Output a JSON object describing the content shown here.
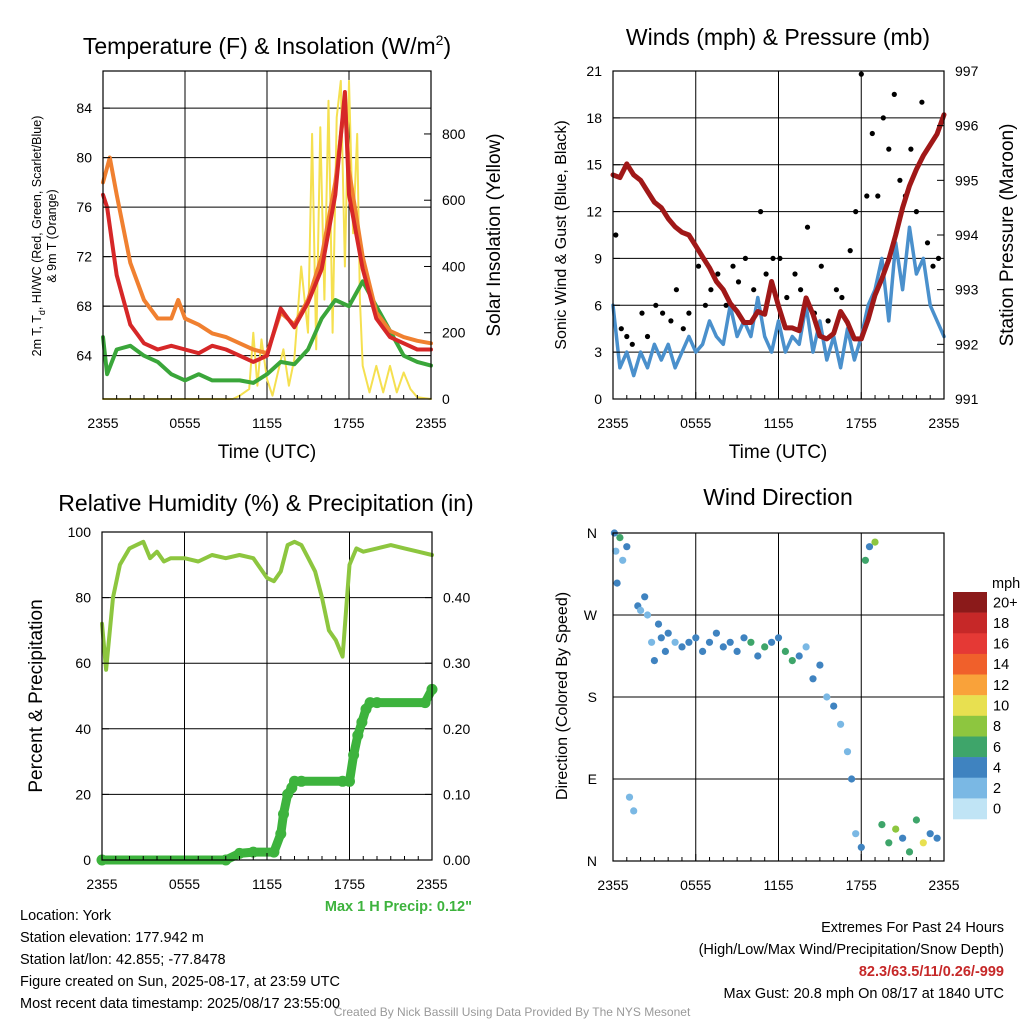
{
  "chart_data": [
    {
      "type": "line",
      "title": "Temperature (F) & Insolation (W/m²)",
      "title_main": "Temperature (F) & Insolation (W/m",
      "title_sup": "2",
      "title_close": ")",
      "xlabel": "Time (UTC)",
      "ylabel_left_line1": "2m T, T",
      "ylabel_left_sub": "d",
      "ylabel_left_rest": ", HI/WC (Red, Green, Scarlet/Blue)",
      "ylabel_left_line2": "& 9m T (Orange)",
      "ylabel_right": "Solar Insolation (Yellow)",
      "x_ticks": [
        "2355",
        "0555",
        "1155",
        "1755",
        "2355"
      ],
      "y_left_ticks": [
        64,
        68,
        72,
        76,
        80,
        84
      ],
      "y_left_lim": [
        60.5,
        87
      ],
      "y_right_ticks": [
        0,
        200,
        400,
        600,
        800
      ],
      "y_right_lim": [
        0,
        990
      ],
      "colors": {
        "temp": "#d62728",
        "dewpoint": "#3aa63a",
        "nine_m": "#f08030",
        "solar": "#f5e050"
      },
      "series": [
        {
          "key": "nine_m",
          "x": [
            0,
            0.5,
            1,
            2,
            3,
            4,
            5,
            5.5,
            6,
            7,
            8,
            9,
            10,
            11,
            12,
            13,
            14,
            15,
            16,
            17,
            17.7,
            18,
            19,
            20,
            21,
            22,
            23,
            24
          ],
          "values": [
            78,
            80,
            77,
            71.5,
            68.5,
            67,
            67,
            68.5,
            67,
            66.5,
            65.8,
            65.5,
            65,
            64.5,
            64.2,
            67.5,
            66.5,
            68.5,
            72,
            78,
            84.5,
            79,
            72,
            67.5,
            66,
            65.5,
            65.2,
            65
          ]
        },
        {
          "key": "temp",
          "x": [
            0,
            0.3,
            1,
            2,
            3,
            4,
            5,
            6,
            7,
            8,
            9,
            10,
            11,
            12,
            13,
            14,
            15,
            16,
            17,
            17.7,
            18,
            19,
            20,
            21,
            22,
            23,
            24
          ],
          "values": [
            77,
            76,
            70.5,
            66.5,
            65,
            64.5,
            64.8,
            64.5,
            64.2,
            64.8,
            64.5,
            64,
            63.5,
            64,
            67.8,
            66.3,
            68.3,
            71,
            77,
            85.3,
            77,
            71,
            67,
            65.5,
            65,
            64.5,
            64.5
          ]
        },
        {
          "key": "dewpoint",
          "x": [
            0,
            0.3,
            1,
            2,
            3,
            4,
            5,
            6,
            7,
            8,
            9,
            10,
            11,
            12,
            13,
            14,
            15,
            16,
            17,
            18,
            19,
            20,
            21,
            22,
            23,
            24
          ],
          "values": [
            65.5,
            62.5,
            64.5,
            64.8,
            64,
            63.5,
            62.5,
            62,
            62.5,
            62,
            62,
            62,
            61.8,
            62.5,
            63.5,
            63.3,
            64.5,
            67,
            68.5,
            68,
            70,
            68,
            66,
            64,
            63.5,
            63.2
          ]
        },
        {
          "key": "solar",
          "x": [
            0,
            9.5,
            10,
            10.7,
            11,
            11.3,
            11.6,
            12,
            12.4,
            12.8,
            13.2,
            13.6,
            14,
            14.5,
            15,
            15.3,
            15.6,
            15.9,
            16.2,
            16.5,
            16.8,
            17.1,
            17.4,
            17.7,
            18,
            18.3,
            18.6,
            18.8,
            19,
            19.5,
            20,
            20.5,
            21,
            21.5,
            22,
            22.5,
            23,
            24
          ],
          "values": [
            0,
            0,
            10,
            30,
            200,
            40,
            180,
            60,
            10,
            80,
            150,
            40,
            120,
            400,
            200,
            800,
            150,
            820,
            300,
            900,
            200,
            850,
            960,
            400,
            960,
            500,
            800,
            300,
            100,
            20,
            100,
            20,
            100,
            20,
            80,
            30,
            5,
            0
          ]
        }
      ]
    },
    {
      "type": "line",
      "title": "Winds (mph) & Pressure (mb)",
      "xlabel": "Time (UTC)",
      "ylabel_left": "Sonic Wind & Gust (Blue, Black)",
      "ylabel_right": "Station Pressure (Maroon)",
      "x_ticks": [
        "2355",
        "0555",
        "1155",
        "1755",
        "2355"
      ],
      "y_left_ticks": [
        0,
        3,
        6,
        9,
        12,
        15,
        18,
        21
      ],
      "y_left_lim": [
        0,
        21
      ],
      "y_right_ticks": [
        991,
        992,
        993,
        994,
        995,
        996,
        997
      ],
      "y_right_lim": [
        991,
        997
      ],
      "colors": {
        "wind": "#4a90cc",
        "gust": "#000000",
        "pressure": "#a01818"
      },
      "series": [
        {
          "key": "wind",
          "x": [
            0,
            0.5,
            1,
            1.5,
            2,
            2.5,
            3,
            3.5,
            4,
            4.5,
            5,
            5.5,
            6,
            6.5,
            7,
            7.5,
            8,
            8.5,
            9,
            9.5,
            10,
            10.5,
            11,
            11.5,
            12,
            12.5,
            13,
            13.5,
            14,
            14.5,
            15,
            15.5,
            16,
            16.5,
            17,
            17.5,
            18,
            18.5,
            19,
            19.5,
            20,
            20.5,
            21,
            21.5,
            22,
            22.5,
            23,
            23.5,
            24
          ],
          "values": [
            6,
            2,
            3,
            1.5,
            3,
            2,
            3.5,
            2.5,
            3.5,
            2,
            3,
            4,
            3,
            3.5,
            5,
            4,
            3.5,
            6,
            4,
            5,
            4,
            6.5,
            4,
            3,
            5,
            3,
            4,
            3.5,
            6,
            3,
            5,
            2.5,
            4,
            2,
            4.5,
            2.5,
            4,
            6,
            7,
            9,
            5,
            10,
            7,
            11,
            8,
            9,
            6,
            5,
            4
          ]
        },
        {
          "key": "gust",
          "x": [
            0.2,
            0.6,
            1,
            1.4,
            2.1,
            2.5,
            3.1,
            3.6,
            4.2,
            4.6,
            5.1,
            5.5,
            6.2,
            6.7,
            7.1,
            7.6,
            8.2,
            8.7,
            9.1,
            9.6,
            10.2,
            10.7,
            11.1,
            11.6,
            12.1,
            12.6,
            13.2,
            13.6,
            14.1,
            14.6,
            15.1,
            15.6,
            16.2,
            16.6,
            17.2,
            17.6,
            18,
            18.4,
            18.8,
            19.2,
            19.6,
            20,
            20.4,
            20.8,
            21.2,
            21.6,
            22,
            22.4,
            22.8,
            23.2,
            23.6
          ],
          "values": [
            10.5,
            4.5,
            4,
            3.5,
            5.5,
            4,
            6,
            5.5,
            5,
            7,
            4.5,
            5.5,
            8.5,
            6,
            7,
            8,
            6,
            8.5,
            7.5,
            9,
            7,
            12,
            8,
            9,
            9,
            6.5,
            8,
            7,
            11,
            5.5,
            8.5,
            5,
            7,
            6.5,
            9.5,
            12,
            20.8,
            13,
            17,
            13,
            18,
            16,
            19.5,
            14,
            13,
            16,
            12,
            19,
            10,
            8.5,
            9
          ]
        },
        {
          "key": "pressure",
          "x": [
            0,
            0.5,
            1,
            1.5,
            2,
            2.5,
            3,
            3.5,
            4,
            4.5,
            5,
            5.5,
            6,
            6.5,
            7,
            7.5,
            8,
            8.5,
            9,
            9.5,
            10,
            10.5,
            11,
            11.5,
            12,
            12.5,
            13,
            13.5,
            14,
            14.5,
            15,
            15.5,
            16,
            16.5,
            17,
            17.5,
            18,
            18.5,
            19,
            19.5,
            20,
            20.5,
            21,
            21.5,
            22,
            22.5,
            23,
            23.5,
            24
          ],
          "values": [
            995.1,
            995.05,
            995.3,
            995.1,
            995.0,
            994.8,
            994.6,
            994.5,
            994.3,
            994.15,
            994.05,
            994.0,
            993.8,
            993.6,
            993.4,
            993.15,
            993.0,
            992.75,
            992.6,
            992.4,
            992.4,
            992.6,
            992.55,
            993.15,
            992.7,
            992.3,
            992.3,
            992.25,
            992.85,
            992.55,
            992.15,
            992.1,
            992.2,
            992.6,
            992.4,
            992.1,
            992.1,
            992.45,
            992.9,
            993.2,
            993.55,
            994.0,
            994.5,
            994.9,
            995.2,
            995.45,
            995.65,
            995.85,
            996.2
          ]
        }
      ]
    },
    {
      "type": "line",
      "title": "Relative Humidity (%) & Precipitation (in)",
      "xlabel": "",
      "ylabel_left": "Percent & Precipitation",
      "x_ticks": [
        "2355",
        "0555",
        "1155",
        "1755",
        "2355"
      ],
      "y_left_ticks": [
        0,
        20,
        40,
        60,
        80,
        100
      ],
      "y_left_lim": [
        0,
        100
      ],
      "y_right_ticks": [
        "0.00",
        "0.10",
        "0.20",
        "0.30",
        "0.40"
      ],
      "y_right_lim": [
        0,
        0.5
      ],
      "annotation": "Max 1 H Precip: 0.12\"",
      "colors": {
        "rh": "#8dc63f",
        "precip": "#3db33d"
      },
      "series": [
        {
          "key": "rh",
          "x": [
            0,
            0.3,
            0.8,
            1.3,
            2,
            2.5,
            3,
            3.5,
            4,
            4.5,
            5,
            6,
            7,
            8,
            9,
            10,
            11,
            12,
            12.5,
            13,
            13.5,
            14,
            14.5,
            15,
            15.5,
            16,
            16.5,
            17,
            17.5,
            18,
            18.5,
            19,
            20,
            21,
            22,
            23,
            24
          ],
          "values": [
            72,
            58,
            80,
            90,
            95,
            96,
            97,
            92,
            94,
            91,
            92,
            92,
            91,
            93,
            92,
            93,
            92,
            86,
            85,
            88,
            96,
            97,
            96,
            92,
            88,
            80,
            70,
            67,
            62,
            90,
            95,
            94,
            95,
            96,
            95,
            94,
            93
          ]
        },
        {
          "key": "precip",
          "x": [
            0,
            9,
            10,
            11,
            12.5,
            13,
            13.2,
            13.5,
            13.8,
            14,
            14.5,
            17.5,
            18,
            18.3,
            18.6,
            18.9,
            19.2,
            19.5,
            20,
            23.5,
            24
          ],
          "values": [
            0,
            0,
            0.01,
            0.012,
            0.012,
            0.04,
            0.07,
            0.1,
            0.11,
            0.12,
            0.12,
            0.12,
            0.12,
            0.16,
            0.19,
            0.21,
            0.23,
            0.24,
            0.24,
            0.24,
            0.26
          ]
        }
      ]
    },
    {
      "type": "scatter",
      "title": "Wind Direction",
      "xlabel": "",
      "ylabel_left": "Direction (Colored By Speed)",
      "x_ticks": [
        "2355",
        "0555",
        "1155",
        "1755",
        "2355"
      ],
      "y_ticks": [
        "N",
        "E",
        "S",
        "W",
        "N"
      ],
      "y_lim": [
        0,
        360
      ],
      "legend_title": "mph",
      "legend_labels": [
        "20+",
        "18",
        "16",
        "14",
        "12",
        "10",
        "8",
        "6",
        "4",
        "2",
        "0"
      ],
      "legend_colors": [
        "#8b1a1a",
        "#c62828",
        "#e53935",
        "#f0602b",
        "#f9a23a",
        "#e8e050",
        "#8dc63f",
        "#3ea56a",
        "#3f83c0",
        "#7ab8e4",
        "#c0e4f5"
      ],
      "series": [
        {
          "key": "direction",
          "x": [
            0.1,
            0.2,
            0.3,
            0.5,
            0.7,
            1,
            1.2,
            1.5,
            1.8,
            2,
            2.3,
            2.5,
            2.8,
            3,
            3.3,
            3.5,
            3.8,
            4,
            4.5,
            5,
            5.5,
            6,
            6.5,
            7,
            7.5,
            8,
            8.5,
            9,
            9.5,
            10,
            10.5,
            11,
            11.5,
            12,
            12.5,
            13,
            13.5,
            14,
            14.5,
            15,
            15.5,
            16,
            16.5,
            17,
            17.3,
            17.6,
            18,
            18.3,
            18.6,
            19,
            19.5,
            20,
            20.5,
            21,
            21.5,
            22,
            22.5,
            23,
            23.5
          ],
          "values": [
            360,
            340,
            305,
            355,
            330,
            345,
            70,
            55,
            280,
            275,
            290,
            270,
            240,
            220,
            260,
            245,
            230,
            250,
            240,
            235,
            240,
            245,
            230,
            240,
            250,
            235,
            240,
            230,
            245,
            240,
            225,
            235,
            240,
            245,
            230,
            220,
            225,
            235,
            200,
            215,
            180,
            170,
            150,
            120,
            90,
            30,
            15,
            330,
            345,
            350,
            40,
            20,
            35,
            25,
            10,
            45,
            20,
            30,
            25
          ],
          "speeds": [
            3,
            2,
            4,
            5,
            2,
            3,
            1,
            1,
            3,
            2,
            3,
            2,
            2,
            3,
            4,
            3,
            3,
            4,
            2,
            3,
            4,
            3,
            4,
            3,
            4,
            3,
            4,
            4,
            3,
            5,
            4,
            6,
            3,
            4,
            5,
            6,
            3,
            2,
            3,
            4,
            2,
            3,
            2,
            2,
            3,
            2,
            3,
            5,
            4,
            7,
            6,
            5,
            8,
            4,
            6,
            5,
            9,
            3,
            4
          ]
        }
      ]
    }
  ],
  "info_left": {
    "location": "Location: York",
    "elevation": "Station elevation: 177.942 m",
    "latlon": "Station lat/lon: 42.855; -77.8478",
    "created": "Figure created on Sun, 2025-08-17, at 23:59 UTC",
    "recent": "Most recent data timestamp: 2025/08/17 23:55:00"
  },
  "info_right": {
    "extremes_title": "Extremes For Past 24 Hours",
    "extremes_fields": "(High/Low/Max Wind/Precipitation/Snow Depth)",
    "extremes_values": "82.3/63.5/11/0.26/-999",
    "max_gust": "Max Gust: 20.8 mph On 08/17 at 1840 UTC"
  },
  "credit": "Created By Nick Bassill Using Data Provided By The NYS Mesonet"
}
